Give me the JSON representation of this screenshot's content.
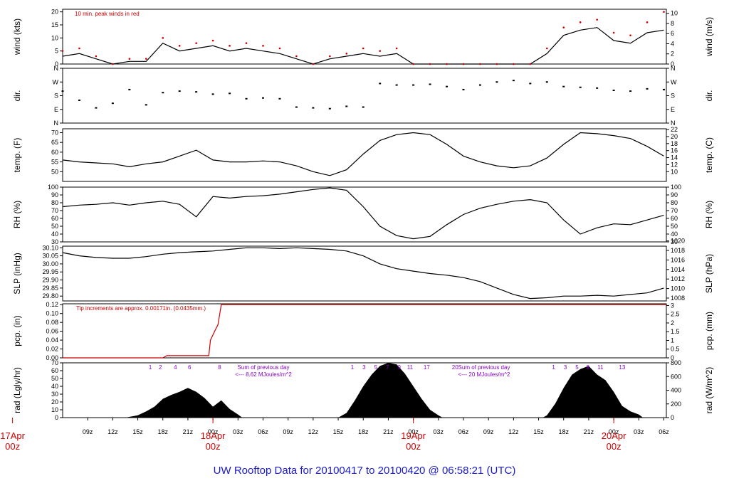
{
  "footer": {
    "title": "UW Rooftop Data for 20100417  to  20100420 @ 06:58:21  (UTC)"
  },
  "colors": {
    "series": "#000000",
    "peak": "#cc0000",
    "annotation_red": "#cc0000",
    "annotation_purple": "#8800cc",
    "title": "#1a1acc"
  },
  "x_axis": {
    "unit": "hours since 17Apr 00z",
    "range": [
      6,
      78.3
    ],
    "ticks": [
      {
        "h": 9,
        "label": "09z"
      },
      {
        "h": 12,
        "label": "12z"
      },
      {
        "h": 15,
        "label": "15z"
      },
      {
        "h": 18,
        "label": "18z"
      },
      {
        "h": 21,
        "label": "21z"
      },
      {
        "h": 24,
        "label": "00z"
      },
      {
        "h": 27,
        "label": "03z"
      },
      {
        "h": 30,
        "label": "06z"
      },
      {
        "h": 33,
        "label": "09z"
      },
      {
        "h": 36,
        "label": "12z"
      },
      {
        "h": 39,
        "label": "15z"
      },
      {
        "h": 42,
        "label": "18z"
      },
      {
        "h": 45,
        "label": "21z"
      },
      {
        "h": 48,
        "label": "00z"
      },
      {
        "h": 51,
        "label": "03z"
      },
      {
        "h": 54,
        "label": "06z"
      },
      {
        "h": 57,
        "label": "09z"
      },
      {
        "h": 60,
        "label": "12z"
      },
      {
        "h": 63,
        "label": "15z"
      },
      {
        "h": 66,
        "label": "18z"
      },
      {
        "h": 69,
        "label": "21z"
      },
      {
        "h": 72,
        "label": "00z"
      },
      {
        "h": 75,
        "label": "03z"
      },
      {
        "h": 78,
        "label": "06z"
      }
    ],
    "day_markers": [
      {
        "h": 0,
        "day": "17Apr",
        "time": "00z"
      },
      {
        "h": 24,
        "day": "18Apr",
        "time": "00z"
      },
      {
        "h": 48,
        "day": "19Apr",
        "time": "00z"
      },
      {
        "h": 72,
        "day": "20Apr",
        "time": "00z"
      }
    ]
  },
  "chart_data": [
    {
      "type": "line",
      "id": "wind",
      "ylabel_left": "wind (kts)",
      "ylabel_right": "wind (m/s)",
      "ylim": [
        0,
        21
      ],
      "yticks_left": [
        "0",
        "5",
        "10",
        "15",
        "20"
      ],
      "yticks_right": [
        "0",
        "2",
        "4",
        "6",
        "8",
        "10"
      ],
      "annotation": "10 min. peak winds in red",
      "x": [
        6,
        8,
        10,
        12,
        14,
        16,
        18,
        20,
        22,
        24,
        26,
        28,
        30,
        32,
        34,
        36,
        38,
        40,
        42,
        44,
        46,
        48,
        50,
        52,
        54,
        56,
        58,
        60,
        62,
        64,
        66,
        68,
        70,
        72,
        74,
        76,
        78
      ],
      "series": [
        {
          "values": [
            3,
            4,
            2,
            0,
            1,
            1,
            8,
            5,
            6,
            7,
            5,
            6,
            5,
            4,
            2,
            0,
            2,
            3,
            4,
            3,
            4,
            0,
            0,
            0,
            0,
            0,
            0,
            0,
            0,
            4,
            11,
            13,
            14,
            9,
            8,
            12,
            13
          ]
        },
        {
          "values": [
            5,
            6,
            3,
            0,
            2,
            2,
            10,
            7,
            8,
            9,
            7,
            8,
            7,
            6,
            3,
            0,
            3,
            4,
            6,
            5,
            6,
            0,
            0,
            0,
            0,
            0,
            0,
            0,
            0,
            6,
            14,
            16,
            17,
            12,
            11,
            16,
            20
          ]
        }
      ]
    },
    {
      "type": "scatter",
      "id": "direction",
      "ylabel_left": "dir.",
      "ylabel_right": "dir.",
      "ylim": [
        0,
        360
      ],
      "yticks_left": [
        "N",
        "E",
        "S",
        "W",
        "N"
      ],
      "yticks_right": [
        "N",
        "E",
        "S",
        "W",
        "N"
      ],
      "x": [
        6,
        8,
        10,
        12,
        14,
        16,
        18,
        20,
        22,
        24,
        26,
        28,
        30,
        32,
        34,
        36,
        38,
        40,
        42,
        44,
        46,
        48,
        50,
        52,
        54,
        56,
        58,
        60,
        62,
        64,
        66,
        68,
        70,
        72,
        74,
        76,
        78
      ],
      "series": [
        {
          "values": [
            210,
            150,
            100,
            130,
            220,
            120,
            200,
            210,
            205,
            190,
            195,
            160,
            165,
            160,
            105,
            100,
            95,
            110,
            105,
            260,
            250,
            250,
            255,
            240,
            220,
            250,
            270,
            280,
            260,
            270,
            240,
            235,
            230,
            215,
            210,
            225,
            220
          ]
        }
      ]
    },
    {
      "type": "line",
      "id": "temperature",
      "ylabel_left": "temp. (F)",
      "ylabel_right": "temp. (C)",
      "ylim": [
        45,
        72
      ],
      "yticks_left": [
        "50",
        "55",
        "60",
        "65",
        "70"
      ],
      "yticks_right": [
        "10",
        "12",
        "14",
        "16",
        "18",
        "20",
        "22"
      ],
      "x": [
        6,
        8,
        10,
        12,
        14,
        16,
        18,
        20,
        22,
        24,
        26,
        28,
        30,
        32,
        34,
        36,
        38,
        40,
        42,
        44,
        46,
        48,
        50,
        52,
        54,
        56,
        58,
        60,
        62,
        64,
        66,
        68,
        70,
        72,
        74,
        76,
        78
      ],
      "series": [
        {
          "values": [
            56,
            55,
            54.5,
            54,
            52.5,
            54,
            55,
            58,
            61,
            56,
            55,
            55,
            55.5,
            55,
            53,
            50,
            48,
            51,
            59,
            66,
            69,
            70,
            69,
            64,
            58,
            55,
            53,
            52,
            53,
            57,
            64,
            70,
            69.5,
            68.5,
            67,
            63,
            58
          ]
        }
      ]
    },
    {
      "type": "line",
      "id": "rh",
      "ylabel_left": "RH (%)",
      "ylabel_right": "RH (%)",
      "ylim": [
        30,
        100
      ],
      "yticks_left": [
        "30",
        "40",
        "50",
        "60",
        "70",
        "80",
        "90",
        "100"
      ],
      "yticks_right": [
        "30",
        "40",
        "50",
        "60",
        "70",
        "80",
        "90",
        "100"
      ],
      "x": [
        6,
        8,
        10,
        12,
        14,
        16,
        18,
        20,
        22,
        24,
        26,
        28,
        30,
        32,
        34,
        36,
        38,
        40,
        42,
        44,
        46,
        48,
        50,
        52,
        54,
        56,
        58,
        60,
        62,
        64,
        66,
        68,
        70,
        72,
        74,
        76,
        78
      ],
      "series": [
        {
          "values": [
            75,
            77,
            78,
            80,
            77,
            80,
            82,
            78,
            62,
            88,
            86,
            88,
            89,
            91,
            94,
            97,
            99,
            96,
            75,
            50,
            38,
            34,
            37,
            52,
            65,
            73,
            78,
            82,
            84,
            80,
            58,
            40,
            48,
            53,
            52,
            58,
            64
          ]
        }
      ]
    },
    {
      "type": "line",
      "id": "slp",
      "ylabel_left": "SLP (inHg)",
      "ylabel_right": "SLP (hPa)",
      "ylim": [
        29.77,
        30.11
      ],
      "yticks_left": [
        "29.80",
        "29.85",
        "29.90",
        "29.95",
        "30.00",
        "30.05",
        "30.10"
      ],
      "yticks_right": [
        "1008",
        "1010",
        "1012",
        "1014",
        "1016",
        "1018",
        "1020"
      ],
      "x": [
        6,
        8,
        10,
        12,
        14,
        16,
        18,
        20,
        22,
        24,
        26,
        28,
        30,
        32,
        34,
        36,
        38,
        40,
        42,
        44,
        46,
        48,
        50,
        52,
        54,
        56,
        58,
        60,
        62,
        64,
        66,
        68,
        70,
        72,
        74,
        76,
        78
      ],
      "series": [
        {
          "values": [
            30.07,
            30.05,
            30.04,
            30.035,
            30.035,
            30.045,
            30.06,
            30.07,
            30.075,
            30.08,
            30.09,
            30.1,
            30.1,
            30.095,
            30.1,
            30.095,
            30.09,
            30.08,
            30.05,
            30.0,
            29.97,
            29.955,
            29.94,
            29.93,
            29.915,
            29.89,
            29.85,
            29.81,
            29.785,
            29.79,
            29.8,
            29.8,
            29.805,
            29.8,
            29.81,
            29.82,
            29.85
          ]
        }
      ]
    },
    {
      "type": "line",
      "id": "precipitation",
      "ylabel_left": "pcp. (in)",
      "ylabel_right": "pcp. (mm)",
      "ylim": [
        0,
        0.122
      ],
      "yticks_left": [
        "0.00",
        "0.02",
        "0.04",
        "0.06",
        "0.08",
        "0.10",
        "0.12"
      ],
      "yticks_right": [
        "0",
        "0.5",
        "1",
        "1.5",
        "2",
        "2.5",
        "3"
      ],
      "annotation": "Tip increments are approx. 0.00171in. (0.0435mm.)",
      "x": [
        6,
        18,
        18.5,
        23.5,
        23.7,
        24.2,
        24.6,
        25,
        26,
        78.3
      ],
      "series": [
        {
          "values": [
            0,
            0,
            0.005,
            0.005,
            0.04,
            0.06,
            0.075,
            0.12,
            0.12,
            0.12
          ]
        }
      ]
    },
    {
      "type": "area",
      "id": "radiation",
      "ylabel_left": "rad (Lgly/hr)",
      "ylabel_right": "rad (W/m^2)",
      "ylim": [
        0,
        70
      ],
      "yticks_left": [
        "0",
        "10",
        "20",
        "30",
        "40",
        "50",
        "60",
        "70"
      ],
      "yticks_right": [
        "0",
        "200",
        "400",
        "600",
        "800"
      ],
      "x": [
        13.5,
        15,
        16,
        17,
        18,
        19,
        20,
        21,
        22,
        23,
        24,
        25,
        26,
        27,
        27.5,
        39,
        40,
        41,
        42,
        43,
        44,
        45,
        46,
        47,
        48,
        49,
        50,
        51,
        51.5,
        63.5,
        64,
        65,
        66,
        67,
        68,
        69,
        70,
        71,
        72,
        73,
        74,
        75,
        75.5
      ],
      "series": [
        {
          "values": [
            0,
            3,
            8,
            14,
            24,
            29,
            33,
            38,
            33,
            25,
            14,
            22,
            11,
            4,
            0,
            0,
            6,
            22,
            40,
            55,
            66,
            70,
            68,
            56,
            40,
            24,
            10,
            3,
            0,
            0,
            3,
            18,
            38,
            55,
            62,
            66,
            55,
            48,
            33,
            15,
            8,
            4,
            0
          ]
        }
      ],
      "annotations": [
        {
          "line1": "Sum of previous day",
          "line2": "<--- 8.62 MJoules/m^2"
        },
        {
          "line1": "Sum of previous day",
          "line2": "<--- 20 MJoules/m^2"
        }
      ],
      "hour_labels": [
        {
          "h": 16.5,
          "label": "1"
        },
        {
          "h": 17.7,
          "label": "2"
        },
        {
          "h": 19.5,
          "label": "4"
        },
        {
          "h": 21.2,
          "label": "6"
        },
        {
          "h": 24.8,
          "label": "8"
        },
        {
          "h": 40.7,
          "label": "1"
        },
        {
          "h": 42.1,
          "label": "3"
        },
        {
          "h": 43.5,
          "label": "5"
        },
        {
          "h": 44.9,
          "label": "7"
        },
        {
          "h": 46.3,
          "label": "9"
        },
        {
          "h": 47.6,
          "label": "11"
        },
        {
          "h": 49.6,
          "label": "17"
        },
        {
          "h": 53.0,
          "label": "20"
        },
        {
          "h": 64.8,
          "label": "1"
        },
        {
          "h": 66.2,
          "label": "3"
        },
        {
          "h": 67.6,
          "label": "5"
        },
        {
          "h": 68.9,
          "label": "8"
        },
        {
          "h": 70.4,
          "label": "11"
        },
        {
          "h": 73.0,
          "label": "13"
        }
      ]
    }
  ]
}
